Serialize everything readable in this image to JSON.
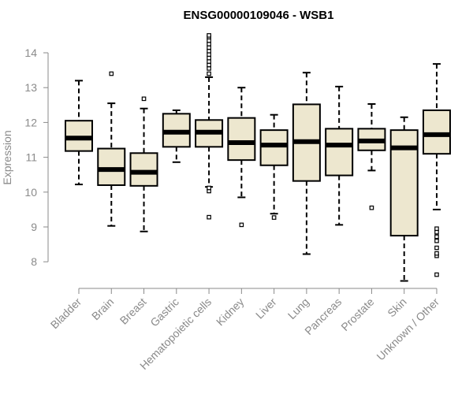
{
  "chart_data": {
    "type": "boxplot",
    "title": "ENSG00000109046 - WSB1",
    "xlabel": "",
    "ylabel": "Expression",
    "ylim": [
      7.6,
      14.7
    ],
    "yticks": [
      8,
      9,
      10,
      11,
      12,
      13,
      14
    ],
    "grid": false,
    "colors": {
      "box_fill": "#ede7cf",
      "box_stroke": "#000000",
      "axis": "#8a8a8a"
    },
    "categories": [
      "Bladder",
      "Brain",
      "Breast",
      "Gastric",
      "Hematopoietic cells",
      "Kidney",
      "Liver",
      "Lung",
      "Pancreas",
      "Prostate",
      "Skin",
      "Unknown / Other"
    ],
    "boxes": [
      {
        "label": "Bladder",
        "whisker_low": 10.22,
        "q1": 11.18,
        "median": 11.55,
        "q3": 12.05,
        "whisker_high": 13.2,
        "outliers": []
      },
      {
        "label": "Brain",
        "whisker_low": 9.03,
        "q1": 10.2,
        "median": 10.65,
        "q3": 11.25,
        "whisker_high": 12.55,
        "outliers": [
          13.4
        ]
      },
      {
        "label": "Breast",
        "whisker_low": 8.87,
        "q1": 10.18,
        "median": 10.57,
        "q3": 11.12,
        "whisker_high": 12.4,
        "outliers": [
          12.68
        ]
      },
      {
        "label": "Gastric",
        "whisker_low": 10.86,
        "q1": 11.3,
        "median": 11.72,
        "q3": 12.25,
        "whisker_high": 12.35,
        "outliers": []
      },
      {
        "label": "Hematopoietic cells",
        "whisker_low": 10.15,
        "q1": 11.3,
        "median": 11.72,
        "q3": 12.07,
        "whisker_high": 13.3,
        "outliers": [
          9.28,
          10.03,
          10.12,
          13.4,
          13.55,
          13.65,
          13.75,
          13.85,
          13.95,
          14.05,
          14.15,
          14.25,
          14.35,
          14.45,
          14.5
        ]
      },
      {
        "label": "Kidney",
        "whisker_low": 9.85,
        "q1": 10.92,
        "median": 11.42,
        "q3": 12.13,
        "whisker_high": 13.0,
        "outliers": [
          9.06
        ]
      },
      {
        "label": "Liver",
        "whisker_low": 9.38,
        "q1": 10.77,
        "median": 11.35,
        "q3": 11.78,
        "whisker_high": 12.22,
        "outliers": [
          9.27
        ]
      },
      {
        "label": "Lung",
        "whisker_low": 8.22,
        "q1": 10.32,
        "median": 11.45,
        "q3": 12.52,
        "whisker_high": 13.43,
        "outliers": []
      },
      {
        "label": "Pancreas",
        "whisker_low": 9.06,
        "q1": 10.48,
        "median": 11.35,
        "q3": 11.82,
        "whisker_high": 13.03,
        "outliers": []
      },
      {
        "label": "Prostate",
        "whisker_low": 10.62,
        "q1": 11.2,
        "median": 11.47,
        "q3": 11.82,
        "whisker_high": 12.53,
        "outliers": [
          9.55
        ]
      },
      {
        "label": "Skin",
        "whisker_low": 7.45,
        "q1": 8.75,
        "median": 11.27,
        "q3": 11.78,
        "whisker_high": 12.15,
        "outliers": []
      },
      {
        "label": "Unknown / Other",
        "whisker_low": 9.5,
        "q1": 11.1,
        "median": 11.65,
        "q3": 12.35,
        "whisker_high": 13.68,
        "outliers": [
          7.63,
          8.17,
          8.24,
          8.4,
          8.6,
          8.72,
          8.85,
          8.95
        ]
      }
    ]
  }
}
